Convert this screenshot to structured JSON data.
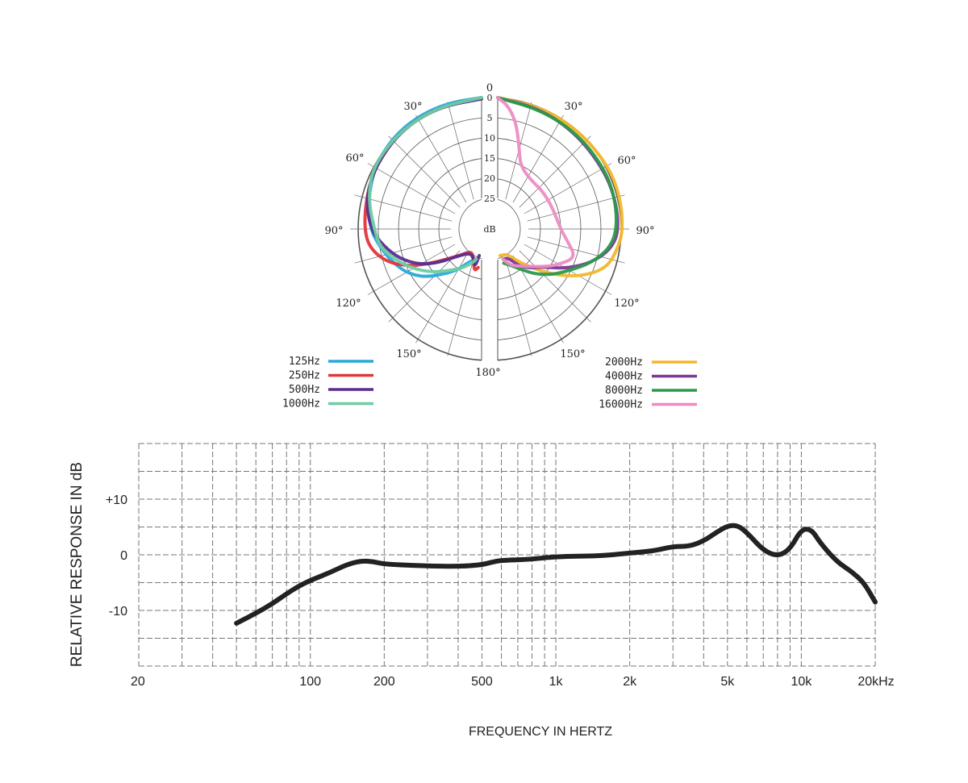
{
  "chart_data": [
    {
      "type": "polar",
      "angle_labels": [
        "0",
        "30°",
        "60°",
        "90°",
        "120°",
        "150°",
        "180°"
      ],
      "db_ring_labels": [
        "0",
        "5",
        "10",
        "15",
        "20",
        "25"
      ],
      "center_label": "dB",
      "series": [
        {
          "name": "125Hz",
          "color": "#2aa8de",
          "side": "left",
          "points": [
            [
              0,
              0
            ],
            [
              15,
              0.2
            ],
            [
              30,
              0.5
            ],
            [
              45,
              1
            ],
            [
              60,
              2
            ],
            [
              75,
              3.5
            ],
            [
              90,
              5
            ],
            [
              100,
              7
            ],
            [
              110,
              9
            ],
            [
              120,
              11
            ],
            [
              130,
              14
            ],
            [
              140,
              18
            ],
            [
              150,
              21
            ],
            [
              160,
              24
            ],
            [
              170,
              25
            ]
          ]
        },
        {
          "name": "250Hz",
          "color": "#e0363a",
          "side": "left",
          "points": [
            [
              0,
              0.3
            ],
            [
              20,
              0.5
            ],
            [
              40,
              1
            ],
            [
              60,
              2
            ],
            [
              75,
              3
            ],
            [
              90,
              3.5
            ],
            [
              100,
              4.5
            ],
            [
              110,
              8
            ],
            [
              118,
              13
            ],
            [
              125,
              18
            ],
            [
              140,
              24
            ],
            [
              155,
              27
            ],
            [
              165,
              25
            ],
            [
              170,
              22
            ],
            [
              175,
              23
            ]
          ]
        },
        {
          "name": "500Hz",
          "color": "#5a2d91",
          "side": "left",
          "points": [
            [
              0,
              0.3
            ],
            [
              20,
              0.5
            ],
            [
              40,
              1
            ],
            [
              60,
              2
            ],
            [
              75,
              3
            ],
            [
              90,
              5
            ],
            [
              100,
              8
            ],
            [
              110,
              11
            ],
            [
              120,
              15
            ],
            [
              128,
              19
            ],
            [
              140,
              24
            ],
            [
              155,
              26
            ],
            [
              165,
              25
            ],
            [
              170,
              23
            ],
            [
              175,
              26
            ]
          ]
        },
        {
          "name": "1000Hz",
          "color": "#6fcda2",
          "side": "left",
          "points": [
            [
              0,
              0
            ],
            [
              20,
              0.5
            ],
            [
              40,
              1
            ],
            [
              60,
              1.5
            ],
            [
              75,
              3.5
            ],
            [
              90,
              6
            ],
            [
              100,
              7
            ],
            [
              110,
              10
            ],
            [
              120,
              13
            ],
            [
              130,
              16
            ],
            [
              140,
              19
            ],
            [
              155,
              22
            ],
            [
              165,
              24
            ],
            [
              170,
              25
            ]
          ]
        },
        {
          "name": "2000Hz",
          "color": "#f2b72b",
          "side": "right",
          "points": [
            [
              0,
              0
            ],
            [
              20,
              0.5
            ],
            [
              40,
              1
            ],
            [
              60,
              1
            ],
            [
              75,
              1.2
            ],
            [
              90,
              1.5
            ],
            [
              100,
              2.5
            ],
            [
              110,
              4
            ],
            [
              120,
              9
            ],
            [
              130,
              15
            ],
            [
              145,
              22
            ],
            [
              160,
              26
            ],
            [
              170,
              26
            ],
            [
              175,
              26
            ]
          ]
        },
        {
          "name": "4000Hz",
          "color": "#7a3a96",
          "side": "right",
          "points": [
            [
              0,
              0
            ],
            [
              20,
              1
            ],
            [
              40,
              2
            ],
            [
              60,
              2.5
            ],
            [
              75,
              2.5
            ],
            [
              90,
              2.5
            ],
            [
              100,
              4
            ],
            [
              110,
              8
            ],
            [
              120,
              13
            ],
            [
              130,
              18
            ],
            [
              140,
              20
            ],
            [
              150,
              22
            ],
            [
              160,
              25
            ],
            [
              170,
              25
            ]
          ]
        },
        {
          "name": "8000Hz",
          "color": "#2c9a4a",
          "side": "right",
          "points": [
            [
              0,
              0
            ],
            [
              20,
              1.2
            ],
            [
              40,
              1.8
            ],
            [
              60,
              2.2
            ],
            [
              75,
              2.5
            ],
            [
              90,
              3
            ],
            [
              100,
              4.5
            ],
            [
              110,
              8
            ],
            [
              120,
              12
            ],
            [
              130,
              15
            ],
            [
              140,
              18
            ],
            [
              150,
              21
            ],
            [
              160,
              23
            ],
            [
              170,
              24
            ]
          ]
        },
        {
          "name": "16000Hz",
          "color": "#ee8cc4",
          "side": "right",
          "points": [
            [
              0,
              0
            ],
            [
              5,
              2
            ],
            [
              10,
              6
            ],
            [
              15,
              12
            ],
            [
              20,
              16
            ],
            [
              35,
              18
            ],
            [
              50,
              18
            ],
            [
              70,
              18
            ],
            [
              90,
              17
            ],
            [
              100,
              15
            ],
            [
              110,
              12
            ],
            [
              120,
              15
            ],
            [
              130,
              18
            ],
            [
              150,
              22
            ],
            [
              160,
              23
            ],
            [
              170,
              25
            ]
          ]
        }
      ],
      "legend_left": [
        "125Hz",
        "250Hz",
        "500Hz",
        "1000Hz"
      ],
      "legend_right": [
        "2000Hz",
        "4000Hz",
        "8000Hz",
        "16000Hz"
      ]
    },
    {
      "type": "line",
      "xlabel": "FREQUENCY IN HERTZ",
      "ylabel": "RELATIVE RESPONSE IN dB",
      "x_scale": "log",
      "xlim": [
        20,
        20000
      ],
      "ylim": [
        -20,
        20
      ],
      "x_ticks": [
        {
          "value": 20,
          "label": "20"
        },
        {
          "value": 100,
          "label": "100"
        },
        {
          "value": 200,
          "label": "200"
        },
        {
          "value": 500,
          "label": "500"
        },
        {
          "value": 1000,
          "label": "1k"
        },
        {
          "value": 2000,
          "label": "2k"
        },
        {
          "value": 5000,
          "label": "5k"
        },
        {
          "value": 10000,
          "label": "10k"
        },
        {
          "value": 20000,
          "label": "20kHz"
        }
      ],
      "y_ticks": [
        {
          "value": 10,
          "label": "+10"
        },
        {
          "value": 0,
          "label": "0"
        },
        {
          "value": -10,
          "label": "-10"
        }
      ],
      "grid": true,
      "series": [
        {
          "color": "#222222",
          "x": [
            50,
            60,
            70,
            80,
            90,
            100,
            120,
            140,
            160,
            180,
            200,
            300,
            400,
            500,
            550,
            600,
            800,
            1000,
            1500,
            2000,
            2500,
            3000,
            3500,
            4000,
            4500,
            5000,
            5500,
            6000,
            7000,
            8000,
            9000,
            10000,
            11000,
            12000,
            14000,
            16000,
            18000,
            20000
          ],
          "y": [
            -12.3,
            -10.5,
            -8.8,
            -7.0,
            -5.6,
            -4.6,
            -3.2,
            -1.8,
            -1.1,
            -1.2,
            -1.7,
            -2.0,
            -2.1,
            -1.8,
            -1.3,
            -1.0,
            -0.8,
            -0.3,
            -0.2,
            0.3,
            0.7,
            1.5,
            1.5,
            2.5,
            4.0,
            5.2,
            5.3,
            4.0,
            0.8,
            -0.3,
            1.0,
            4.6,
            4.6,
            2.0,
            -1.3,
            -3.0,
            -5.0,
            -8.5
          ]
        }
      ]
    }
  ]
}
